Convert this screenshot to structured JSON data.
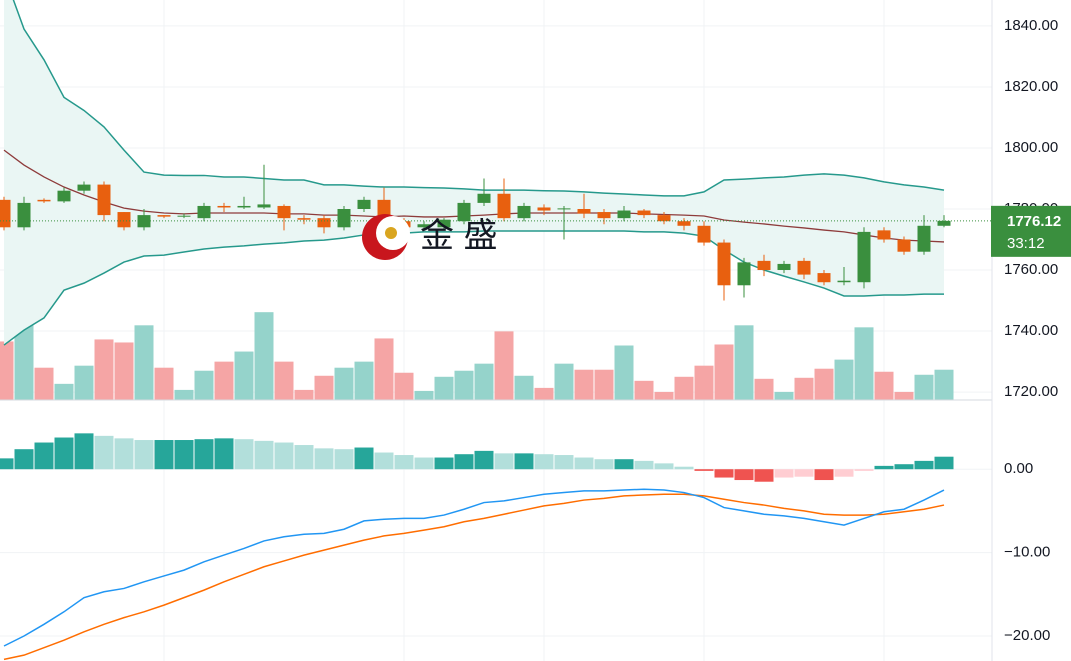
{
  "chart_data": [
    {
      "type": "candlestick",
      "open": [
        1783,
        1774,
        1783,
        1782.5,
        1786,
        1788,
        1779,
        1774,
        1778,
        1777.5,
        1777,
        1781,
        1780.5,
        1780.5,
        1781,
        1777,
        1777,
        1774,
        1780,
        1783,
        1776,
        1774,
        1774,
        1776,
        1782,
        1785,
        1777,
        1780.5,
        1780,
        1780,
        1779,
        1777,
        1779.5,
        1778,
        1776,
        1774.5,
        1769,
        1755,
        1763,
        1760,
        1763,
        1759,
        1756,
        1756,
        1773,
        1770,
        1766,
        1774.5
      ],
      "high": [
        1784,
        1784,
        1783.5,
        1787,
        1789,
        1789,
        1779,
        1780,
        1778,
        1778.5,
        1782,
        1782,
        1784,
        1794.5,
        1781.5,
        1778,
        1778,
        1781,
        1784,
        1787,
        1777,
        1776,
        1777,
        1783,
        1790,
        1790,
        1782,
        1781.5,
        1781,
        1785,
        1780,
        1781,
        1780,
        1779,
        1777,
        1776,
        1770,
        1764,
        1765,
        1763,
        1764,
        1760,
        1761,
        1774,
        1774,
        1771,
        1778,
        1778
      ],
      "low": [
        1773,
        1773,
        1782,
        1782,
        1785,
        1776,
        1773,
        1773,
        1777,
        1777,
        1776,
        1779,
        1780,
        1780,
        1773,
        1775,
        1772,
        1773,
        1779,
        1773,
        1773,
        1773,
        1773,
        1775,
        1781,
        1776,
        1776,
        1778,
        1770,
        1777,
        1775,
        1776,
        1777,
        1775,
        1773,
        1768,
        1750,
        1751,
        1758,
        1759,
        1757,
        1755,
        1755,
        1754,
        1769,
        1765,
        1765,
        1774
      ],
      "close": [
        1774,
        1782,
        1782.5,
        1786,
        1788,
        1778,
        1774,
        1778,
        1777.5,
        1777.8,
        1781,
        1780.5,
        1781,
        1781.5,
        1777,
        1776.5,
        1774,
        1780,
        1783,
        1775,
        1774,
        1775,
        1776.5,
        1782,
        1785,
        1777,
        1781,
        1779.5,
        1780.2,
        1778.5,
        1777,
        1779.5,
        1778,
        1776,
        1774.5,
        1769,
        1755,
        1762.5,
        1760,
        1762,
        1758.5,
        1756,
        1756.5,
        1772.5,
        1770,
        1766,
        1774.5,
        1776.12
      ],
      "volume": [
        58,
        107,
        32,
        16,
        34,
        60,
        57,
        74,
        32,
        10,
        29,
        38,
        48,
        87,
        38,
        10,
        24,
        32,
        38,
        61,
        27,
        9,
        23,
        29,
        36,
        68,
        24,
        12,
        36,
        30,
        30,
        54,
        19,
        8,
        23,
        34,
        55,
        74,
        21,
        8,
        22,
        31,
        40,
        72,
        28,
        8,
        25,
        30
      ],
      "bollinger": {
        "upper": [
          1857,
          1839,
          1828.9,
          1816.6,
          1812.3,
          1806.9,
          1799.3,
          1792.1,
          1791.1,
          1791,
          1791,
          1790.5,
          1790.5,
          1790,
          1789.5,
          1789.5,
          1787.9,
          1787.9,
          1787.5,
          1787.2,
          1787.2,
          1787,
          1786.9,
          1786.6,
          1786.2,
          1786.2,
          1786.2,
          1786,
          1785.9,
          1785.6,
          1785.2,
          1784.9,
          1784.6,
          1784.3,
          1784.3,
          1785.6,
          1789.5,
          1789.8,
          1790.2,
          1790.5,
          1791.1,
          1791.5,
          1791.1,
          1790.2,
          1788.9,
          1787.9,
          1787.2,
          1786.2
        ],
        "middle": [
          1799.3,
          1794.4,
          1790.5,
          1787.2,
          1784.6,
          1782.3,
          1780.3,
          1779.3,
          1778.7,
          1778.4,
          1778.7,
          1778.7,
          1778.7,
          1778.7,
          1778.4,
          1778.4,
          1778,
          1778,
          1777.7,
          1777.4,
          1777.7,
          1777.4,
          1777.4,
          1777.7,
          1778,
          1778.4,
          1778.7,
          1778.7,
          1778.7,
          1778.7,
          1778.7,
          1778.7,
          1778.4,
          1778.2,
          1778,
          1777.7,
          1776.4,
          1775.7,
          1775.1,
          1774.4,
          1773.8,
          1773.1,
          1772.5,
          1771.5,
          1770.5,
          1769.8,
          1769.5,
          1769.2
        ],
        "lower": [
          1735.4,
          1740.3,
          1744.3,
          1753.4,
          1755.7,
          1759,
          1762.6,
          1764.6,
          1764.9,
          1765.9,
          1766.9,
          1767.5,
          1767.9,
          1768.5,
          1768.9,
          1769.5,
          1769.8,
          1770.5,
          1771.5,
          1771.8,
          1772.1,
          1772.5,
          1772.5,
          1772.5,
          1772.8,
          1772.8,
          1772.8,
          1772.8,
          1772.8,
          1772.8,
          1772.8,
          1772.8,
          1772.5,
          1772.5,
          1772.1,
          1771.1,
          1766.6,
          1762.6,
          1760,
          1758,
          1756.1,
          1754.1,
          1751.5,
          1751.5,
          1751.8,
          1751.8,
          1752.1,
          1752.1
        ]
      },
      "ylim": [
        1717.4,
        1848.5
      ],
      "yticks": [
        {
          "value": 1720,
          "label": "1720.00"
        },
        {
          "value": 1740,
          "label": "1740.00"
        },
        {
          "value": 1760,
          "label": "1760.00"
        },
        {
          "value": 1780,
          "label": "1780.00"
        },
        {
          "value": 1800,
          "label": "1800.00"
        },
        {
          "value": 1820,
          "label": "1820.00"
        },
        {
          "value": 1840,
          "label": "1840.00"
        }
      ],
      "grid": true,
      "last_price": 1776.12,
      "countdown": "33:12",
      "watermark": "金 盛",
      "colors": {
        "up": "#3a8f3e",
        "down": "#e8600f",
        "volume_up": "#95d3cb",
        "volume_down": "#f5a5a5",
        "band": "#26998c",
        "band_fill": "#eaf6f4",
        "middle": "#8e3b3b",
        "price_box": "#3a8f3e"
      }
    },
    {
      "type": "macd",
      "histogram": [
        1.3,
        2.4,
        3.2,
        3.8,
        4.3,
        4.0,
        3.7,
        3.5,
        3.5,
        3.5,
        3.6,
        3.7,
        3.6,
        3.4,
        3.2,
        2.9,
        2.5,
        2.4,
        2.6,
        2.0,
        1.7,
        1.4,
        1.4,
        1.8,
        2.2,
        1.9,
        1.9,
        1.8,
        1.7,
        1.4,
        1.2,
        1.2,
        1.0,
        0.7,
        0.3,
        -0.2,
        -1.0,
        -1.3,
        -1.5,
        -1.0,
        -0.9,
        -1.3,
        -0.9,
        -0.2,
        0.4,
        0.6,
        1.0,
        1.5
      ],
      "macd": [
        -21.2,
        -20,
        -18.6,
        -17.1,
        -15.4,
        -14.7,
        -14.3,
        -13.5,
        -12.8,
        -12.1,
        -11.1,
        -10.3,
        -9.5,
        -8.6,
        -8.1,
        -7.8,
        -7.7,
        -7.2,
        -6.2,
        -6.0,
        -5.9,
        -5.9,
        -5.5,
        -4.8,
        -4.0,
        -3.8,
        -3.4,
        -3.0,
        -2.8,
        -2.6,
        -2.6,
        -2.5,
        -2.4,
        -2.5,
        -2.8,
        -3.4,
        -4.6,
        -5.0,
        -5.4,
        -5.6,
        -5.9,
        -6.3,
        -6.7,
        -5.9,
        -5.1,
        -4.8,
        -3.7,
        -2.5
      ],
      "signal": [
        -22.8,
        -22.3,
        -21.4,
        -20.5,
        -19.5,
        -18.6,
        -17.8,
        -17.1,
        -16.3,
        -15.4,
        -14.5,
        -13.5,
        -12.6,
        -11.7,
        -11.0,
        -10.3,
        -9.7,
        -9.1,
        -8.5,
        -8.0,
        -7.7,
        -7.3,
        -6.9,
        -6.3,
        -5.9,
        -5.4,
        -4.9,
        -4.4,
        -4.1,
        -3.7,
        -3.5,
        -3.2,
        -3.1,
        -3.0,
        -3.0,
        -3.2,
        -3.6,
        -4.0,
        -4.3,
        -4.7,
        -5.0,
        -5.4,
        -5.5,
        -5.5,
        -5.4,
        -5.1,
        -4.8,
        -4.3
      ],
      "ylim": [
        -23,
        7.7
      ],
      "yticks": [
        {
          "value": -20,
          "label": "−20.00"
        },
        {
          "value": -10,
          "label": "−10.00"
        },
        {
          "value": 0,
          "label": "0.00"
        }
      ],
      "grid": true,
      "colors": {
        "pos_up": "#26a69a",
        "pos_down": "#b2dfdb",
        "neg_down": "#ef5350",
        "neg_up": "#ffcdd2",
        "macd": "#2196f3",
        "signal": "#ff6d00"
      }
    }
  ]
}
